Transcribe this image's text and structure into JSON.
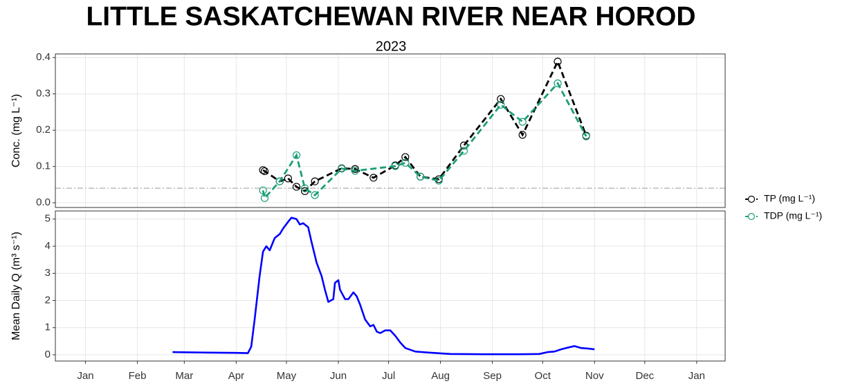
{
  "title": "LITTLE SASKATCHEWAN RIVER NEAR HOROD",
  "subtitle": "2023",
  "chart_data": [
    {
      "type": "line",
      "ylabel": "Conc. (mg L⁻¹)",
      "ylim": [
        -0.013,
        0.41
      ],
      "yticks": [
        {
          "value": 0,
          "label": "0.0"
        },
        0.1,
        0.2,
        0.3,
        0.4
      ],
      "hline": 0.04,
      "hline_color": "#bbbbbb",
      "grid": true,
      "legend": "right",
      "series": [
        {
          "name": "TP (mg L⁻¹)",
          "color": "#000000",
          "x": [
            106,
            107,
            116,
            121,
            126,
            131,
            137,
            153,
            161,
            172,
            185,
            191,
            200,
            211,
            226,
            248,
            261,
            282,
            299
          ],
          "values": [
            0.09,
            0.087,
            0.059,
            0.067,
            0.044,
            0.032,
            0.059,
            0.095,
            0.093,
            0.069,
            0.103,
            0.126,
            0.072,
            0.065,
            0.158,
            0.286,
            0.187,
            0.389,
            0.185
          ]
        },
        {
          "name": "TDP (mg L⁻¹)",
          "color": "#1b9e77",
          "x": [
            106,
            107,
            116,
            126,
            131,
            137,
            153,
            161,
            185,
            191,
            200,
            211,
            226,
            248,
            261,
            282,
            299
          ],
          "values": [
            0.034,
            0.013,
            0.059,
            0.131,
            0.04,
            0.021,
            0.094,
            0.088,
            0.101,
            0.11,
            0.072,
            0.061,
            0.143,
            0.27,
            0.223,
            0.329,
            0.183
          ]
        }
      ]
    },
    {
      "type": "line",
      "ylabel": "Mean Daily Q (m³ s⁻¹)",
      "ylim": [
        -0.23,
        5.3
      ],
      "yticks": [
        0,
        1,
        2,
        3,
        4,
        5
      ],
      "xlim": [
        -18,
        382
      ],
      "xticks": [
        {
          "value": 0,
          "label": "Jan"
        },
        {
          "value": 31,
          "label": "Feb"
        },
        {
          "value": 59,
          "label": "Mar"
        },
        {
          "value": 90,
          "label": "Apr"
        },
        {
          "value": 120,
          "label": "May"
        },
        {
          "value": 151,
          "label": "Jun"
        },
        {
          "value": 181,
          "label": "Jul"
        },
        {
          "value": 212,
          "label": "Aug"
        },
        {
          "value": 243,
          "label": "Sep"
        },
        {
          "value": 273,
          "label": "Oct"
        },
        {
          "value": 304,
          "label": "Nov"
        },
        {
          "value": 334,
          "label": "Dec"
        },
        {
          "value": 365,
          "label": "Jan"
        }
      ],
      "grid": true,
      "color": "#0000ff",
      "x": [
        52,
        73,
        90,
        97,
        99,
        101,
        104,
        106,
        108,
        110,
        113,
        116,
        118,
        121,
        123,
        126,
        128,
        130,
        133,
        135,
        138,
        141,
        143,
        145,
        148,
        149,
        151,
        152,
        155,
        157,
        160,
        162,
        164,
        167,
        170,
        172,
        174,
        176,
        179,
        182,
        185,
        188,
        191,
        197,
        205,
        218,
        238,
        259,
        271,
        276,
        280,
        284,
        287,
        292,
        296,
        300,
        304
      ],
      "values": [
        0.1,
        0.08,
        0.07,
        0.06,
        0.3,
        1.3,
        2.9,
        3.8,
        4.0,
        3.85,
        4.3,
        4.45,
        4.65,
        4.9,
        5.05,
        5.0,
        4.8,
        4.85,
        4.7,
        4.15,
        3.4,
        2.9,
        2.4,
        1.95,
        2.05,
        2.65,
        2.75,
        2.4,
        2.05,
        2.05,
        2.3,
        2.15,
        1.85,
        1.3,
        1.05,
        1.1,
        0.85,
        0.8,
        0.9,
        0.9,
        0.7,
        0.45,
        0.25,
        0.12,
        0.08,
        0.03,
        0.02,
        0.02,
        0.03,
        0.1,
        0.12,
        0.2,
        0.25,
        0.32,
        0.25,
        0.23,
        0.2
      ]
    }
  ]
}
